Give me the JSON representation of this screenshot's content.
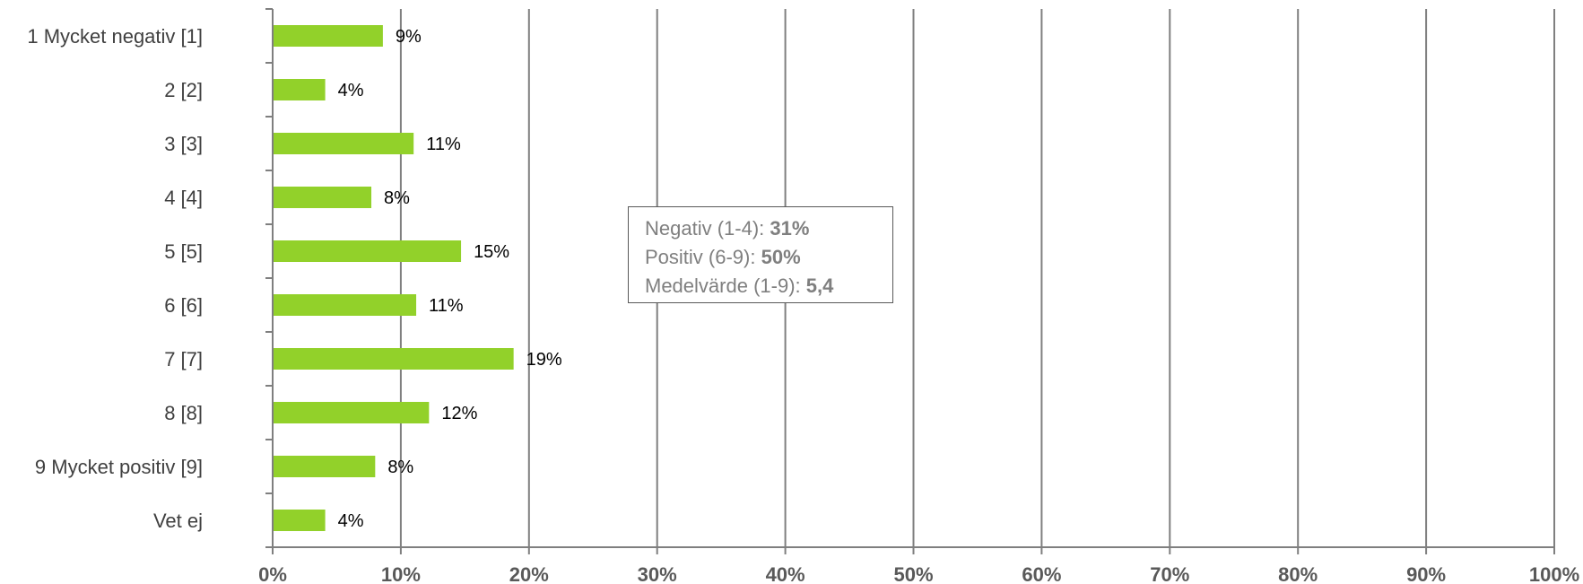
{
  "chart_data": {
    "type": "bar",
    "orientation": "horizontal",
    "categories": [
      "1 Mycket negativ [1]",
      "2 [2]",
      "3 [3]",
      "4 [4]",
      "5 [5]",
      "6 [6]",
      "7 [7]",
      "8 [8]",
      "9 Mycket positiv [9]",
      "Vet ej"
    ],
    "values": [
      9,
      4,
      11,
      8,
      15,
      11,
      19,
      12,
      8,
      4
    ],
    "value_labels": [
      "9%",
      "4%",
      "11%",
      "8%",
      "15%",
      "11%",
      "19%",
      "12%",
      "8%",
      "4%"
    ],
    "bar_lengths_percent": [
      8.6,
      4.1,
      11.0,
      7.7,
      14.7,
      11.2,
      18.8,
      12.2,
      8.0,
      4.1
    ],
    "xlim": [
      0,
      100
    ],
    "x_ticks": [
      "0%",
      "10%",
      "20%",
      "30%",
      "40%",
      "50%",
      "60%",
      "70%",
      "80%",
      "90%",
      "100%"
    ],
    "grid": "vertical",
    "bar_color": "#92d12a",
    "title": "",
    "xlabel": "",
    "ylabel": ""
  },
  "summary": {
    "negativ_label": "Negativ (1-4): ",
    "negativ_value": "31%",
    "positiv_label": "Positiv (6-9): ",
    "positiv_value": "50%",
    "medel_label": "Medelvärde (1-9): ",
    "medel_value": "5,4"
  }
}
